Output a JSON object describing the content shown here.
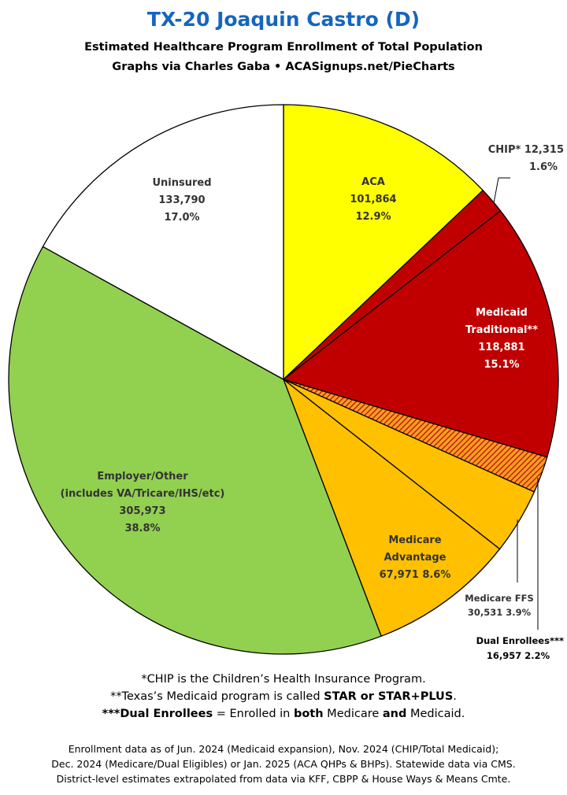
{
  "header": {
    "title": "TX-20 Joaquin Castro (D)",
    "subtitle": "Estimated Healthcare Program Enrollment of Total Population",
    "credit": "Graphs via Charles Gaba  •  ACASignups.net/PieCharts"
  },
  "chart_data": {
    "type": "pie",
    "slices": [
      {
        "name": "ACA",
        "value": 101864,
        "value_label": "101,864",
        "percent": 12.9,
        "percent_label": "12.9%",
        "color": "#ffff00"
      },
      {
        "name": "CHIP*",
        "value": 12315,
        "value_label": "12,315",
        "percent": 1.6,
        "percent_label": "1.6%",
        "color": "#c00000"
      },
      {
        "name": "Medicaid Traditional**",
        "value": 118881,
        "value_label": "118,881",
        "percent": 15.1,
        "percent_label": "15.1%",
        "color": "#c00000"
      },
      {
        "name": "Dual Enrollees***",
        "value": 16957,
        "value_label": "16,957",
        "percent": 2.2,
        "percent_label": "2.2%",
        "color": "#f5a020",
        "pattern": "hatched"
      },
      {
        "name": "Medicare FFS",
        "value": 30531,
        "value_label": "30,531",
        "percent": 3.9,
        "percent_label": "3.9%",
        "color": "#ffc000"
      },
      {
        "name": "Medicare Advantage",
        "value": 67971,
        "value_label": "67,971",
        "percent": 8.6,
        "percent_label": "8.6%",
        "color": "#ffc000"
      },
      {
        "name": "Employer/Other (includes VA/Tricare/IHS/etc)",
        "value": 305973,
        "value_label": "305,973",
        "percent": 38.8,
        "percent_label": "38.8%",
        "color": "#92d050"
      },
      {
        "name": "Uninsured",
        "value": 133790,
        "value_label": "133,790",
        "percent": 17.0,
        "percent_label": "17.0%",
        "color": "#ffffff"
      }
    ],
    "labels": {
      "aca": {
        "l1": "ACA",
        "l2": "101,864",
        "l3": "12.9%"
      },
      "chip": {
        "l1": "CHIP* 12,315",
        "l2": "1.6%"
      },
      "medicaid": {
        "l1": "Medicaid",
        "l2": "Traditional**",
        "l3": "118,881",
        "l4": "15.1%"
      },
      "dual": {
        "l1": "Dual Enrollees***",
        "l2": "16,957 2.2%"
      },
      "ffs": {
        "l1": "Medicare FFS",
        "l2": "30,531 3.9%"
      },
      "advantage": {
        "l1": "Medicare",
        "l2": "Advantage",
        "l3": "67,971 8.6%"
      },
      "employer": {
        "l1": "Employer/Other",
        "l2": "(includes VA/Tricare/IHS/etc)",
        "l3": "305,973",
        "l4": "38.8%"
      },
      "uninsured": {
        "l1": "Uninsured",
        "l2": "133,790",
        "l3": "17.0%"
      }
    }
  },
  "footnotes": {
    "chip_a": "*CHIP is the Children’s Health Insurance Program.",
    "medicaid_a": "**Texas’s Medicaid program is called ",
    "medicaid_b": "STAR or STAR+PLUS",
    "medicaid_c": ".",
    "dual_a": "***Dual Enrollees",
    "dual_b": " = Enrolled in ",
    "dual_c": "both",
    "dual_d": " Medicare ",
    "dual_e": "and",
    "dual_f": " Medicaid."
  },
  "source": {
    "line1": "Enrollment data as of Jun. 2024 (Medicaid expansion), Nov. 2024 (CHIP/Total Medicaid);",
    "line2": "Dec. 2024 (Medicare/Dual Eligibles) or Jan. 2025 (ACA QHPs & BHPs). Statewide data via CMS.",
    "line3": "District-level estimates extrapolated from data via KFF, CBPP & House Ways & Means Cmte."
  }
}
